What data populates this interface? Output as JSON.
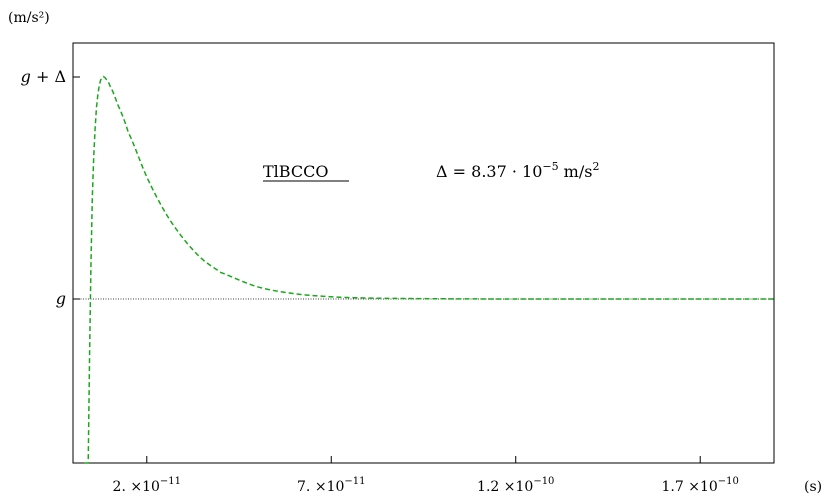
{
  "chart_data": {
    "type": "line",
    "title": "",
    "xlabel": "(s)",
    "ylabel": "(m/s²)",
    "xlim": [
      0,
      1.9e-10
    ],
    "x_ticks": [
      {
        "value": 2e-11,
        "label_mantissa": "2.",
        "label_times": "×",
        "label_base": "10",
        "label_exp": "−11"
      },
      {
        "value": 7e-11,
        "label_mantissa": "7.",
        "label_times": "×",
        "label_base": "10",
        "label_exp": "−11"
      },
      {
        "value": 1.2e-10,
        "label_mantissa": "1.2",
        "label_times": "×",
        "label_base": "10",
        "label_exp": "−10"
      },
      {
        "value": 1.7e-10,
        "label_mantissa": "1.7",
        "label_times": "×",
        "label_base": "10",
        "label_exp": "−10"
      }
    ],
    "y_ticks": [
      {
        "key": "g_plus_delta",
        "label_g": "g",
        "label_rest": " + Δ"
      },
      {
        "key": "g",
        "label_g": "g",
        "label_rest": ""
      }
    ],
    "reference_line": {
      "label": "g",
      "style": "dotted",
      "color": "#000000"
    },
    "series": [
      {
        "color": "#1aa81a",
        "style": "dashed",
        "peak_time": 8.5e-12,
        "x": [
          3e-12,
          4e-12,
          5e-12,
          6e-12,
          7e-12,
          8e-12,
          9e-12,
          1e-11,
          1.2e-11,
          1.5e-11,
          2e-11,
          2.5e-11,
          3e-11,
          3.5e-11,
          4e-11,
          5e-11,
          6e-11,
          7e-11,
          8e-11,
          1e-10,
          1.2e-10,
          1.5e-10,
          1.9e-10
        ],
        "y_rel_delta": [
          -3.36,
          -1.0,
          0.28,
          0.77,
          0.95,
          1.0,
          0.99,
          0.96,
          0.88,
          0.75,
          0.55,
          0.39,
          0.27,
          0.18,
          0.12,
          0.055,
          0.024,
          0.01,
          0.004,
          0.001,
          0.0,
          0.0,
          0.0
        ]
      }
    ],
    "annotations": [
      {
        "key": "material",
        "text": "TlBCCO",
        "underline": true
      },
      {
        "key": "delta_lhs",
        "text": "Δ = 8.37 · 10"
      },
      {
        "key": "delta_exp",
        "text": "−5"
      },
      {
        "key": "delta_unit",
        "text": " m/s"
      },
      {
        "key": "delta_unit_exp",
        "text": "2"
      }
    ],
    "colors": {
      "curve": "#1aa81a",
      "axes": "#000000",
      "background": "#ffffff"
    },
    "grid": false,
    "legend": "none"
  }
}
